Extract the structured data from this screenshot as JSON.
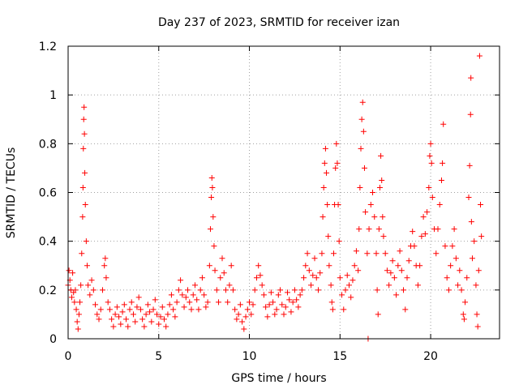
{
  "chart_data": {
    "type": "scatter",
    "title": "Day 237 of 2023, SRMTID for receiver izan",
    "xlabel": "GPS time / hours",
    "ylabel": "SRMTID / TECUs",
    "xlim": [
      0,
      23.8
    ],
    "ylim": [
      0,
      1.2
    ],
    "grid": true,
    "legend": "none",
    "marker": "plus",
    "color": "#ff0000",
    "x_ticks": [
      0,
      5,
      10,
      15,
      20
    ],
    "x_tick_labels": [
      "0",
      "5",
      "10",
      "15",
      "20"
    ],
    "y_ticks": [
      0,
      0.2,
      0.4,
      0.6,
      0.8,
      1.0,
      1.2
    ],
    "y_tick_labels": [
      "0",
      "0.2",
      "0.4",
      "0.6",
      "0.8",
      "1",
      "1.2"
    ],
    "series": [
      {
        "name": "SRMTID",
        "points": [
          [
            0.0,
            0.22
          ],
          [
            0.05,
            0.28
          ],
          [
            0.1,
            0.24
          ],
          [
            0.15,
            0.2
          ],
          [
            0.2,
            0.17
          ],
          [
            0.25,
            0.27
          ],
          [
            0.3,
            0.19
          ],
          [
            0.35,
            0.15
          ],
          [
            0.4,
            0.2
          ],
          [
            0.45,
            0.12
          ],
          [
            0.5,
            0.07
          ],
          [
            0.55,
            0.04
          ],
          [
            0.6,
            0.1
          ],
          [
            0.65,
            0.15
          ],
          [
            0.7,
            0.22
          ],
          [
            0.75,
            0.35
          ],
          [
            0.8,
            0.5
          ],
          [
            0.82,
            0.62
          ],
          [
            0.84,
            0.78
          ],
          [
            0.86,
            0.9
          ],
          [
            0.88,
            0.95
          ],
          [
            0.9,
            0.84
          ],
          [
            0.92,
            0.68
          ],
          [
            0.95,
            0.55
          ],
          [
            1.0,
            0.4
          ],
          [
            1.05,
            0.3
          ],
          [
            1.1,
            0.22
          ],
          [
            1.2,
            0.18
          ],
          [
            1.3,
            0.24
          ],
          [
            1.4,
            0.2
          ],
          [
            1.5,
            0.14
          ],
          [
            1.6,
            0.1
          ],
          [
            1.7,
            0.08
          ],
          [
            1.8,
            0.12
          ],
          [
            1.9,
            0.2
          ],
          [
            2.0,
            0.3
          ],
          [
            2.05,
            0.33
          ],
          [
            2.1,
            0.25
          ],
          [
            2.2,
            0.15
          ],
          [
            2.3,
            0.12
          ],
          [
            2.4,
            0.08
          ],
          [
            2.5,
            0.05
          ],
          [
            2.6,
            0.1
          ],
          [
            2.7,
            0.13
          ],
          [
            2.8,
            0.09
          ],
          [
            2.9,
            0.06
          ],
          [
            3.0,
            0.11
          ],
          [
            3.1,
            0.14
          ],
          [
            3.2,
            0.08
          ],
          [
            3.3,
            0.05
          ],
          [
            3.4,
            0.12
          ],
          [
            3.5,
            0.15
          ],
          [
            3.6,
            0.1
          ],
          [
            3.7,
            0.07
          ],
          [
            3.8,
            0.13
          ],
          [
            3.9,
            0.17
          ],
          [
            4.0,
            0.12
          ],
          [
            4.1,
            0.08
          ],
          [
            4.2,
            0.05
          ],
          [
            4.3,
            0.1
          ],
          [
            4.4,
            0.14
          ],
          [
            4.5,
            0.11
          ],
          [
            4.6,
            0.07
          ],
          [
            4.7,
            0.12
          ],
          [
            4.8,
            0.16
          ],
          [
            4.9,
            0.1
          ],
          [
            5.0,
            0.06
          ],
          [
            5.1,
            0.09
          ],
          [
            5.2,
            0.13
          ],
          [
            5.3,
            0.08
          ],
          [
            5.4,
            0.05
          ],
          [
            5.5,
            0.1
          ],
          [
            5.6,
            0.14
          ],
          [
            5.7,
            0.18
          ],
          [
            5.8,
            0.12
          ],
          [
            5.9,
            0.09
          ],
          [
            6.0,
            0.15
          ],
          [
            6.1,
            0.2
          ],
          [
            6.2,
            0.24
          ],
          [
            6.3,
            0.18
          ],
          [
            6.4,
            0.13
          ],
          [
            6.5,
            0.17
          ],
          [
            6.6,
            0.2
          ],
          [
            6.7,
            0.15
          ],
          [
            6.8,
            0.12
          ],
          [
            6.9,
            0.18
          ],
          [
            7.0,
            0.22
          ],
          [
            7.1,
            0.16
          ],
          [
            7.2,
            0.12
          ],
          [
            7.3,
            0.2
          ],
          [
            7.4,
            0.25
          ],
          [
            7.5,
            0.18
          ],
          [
            7.6,
            0.13
          ],
          [
            7.7,
            0.15
          ],
          [
            7.8,
            0.3
          ],
          [
            7.85,
            0.45
          ],
          [
            7.9,
            0.58
          ],
          [
            7.93,
            0.66
          ],
          [
            7.96,
            0.62
          ],
          [
            8.0,
            0.5
          ],
          [
            8.05,
            0.38
          ],
          [
            8.1,
            0.28
          ],
          [
            8.2,
            0.2
          ],
          [
            8.3,
            0.15
          ],
          [
            8.4,
            0.25
          ],
          [
            8.5,
            0.33
          ],
          [
            8.6,
            0.27
          ],
          [
            8.7,
            0.2
          ],
          [
            8.8,
            0.15
          ],
          [
            8.9,
            0.22
          ],
          [
            9.0,
            0.3
          ],
          [
            9.1,
            0.2
          ],
          [
            9.2,
            0.12
          ],
          [
            9.3,
            0.08
          ],
          [
            9.4,
            0.1
          ],
          [
            9.5,
            0.14
          ],
          [
            9.6,
            0.07
          ],
          [
            9.7,
            0.04
          ],
          [
            9.8,
            0.09
          ],
          [
            9.9,
            0.12
          ],
          [
            10.0,
            0.15
          ],
          [
            10.1,
            0.1
          ],
          [
            10.2,
            0.14
          ],
          [
            10.3,
            0.2
          ],
          [
            10.4,
            0.25
          ],
          [
            10.5,
            0.3
          ],
          [
            10.6,
            0.26
          ],
          [
            10.7,
            0.22
          ],
          [
            10.8,
            0.18
          ],
          [
            10.9,
            0.13
          ],
          [
            11.0,
            0.09
          ],
          [
            11.1,
            0.14
          ],
          [
            11.2,
            0.19
          ],
          [
            11.3,
            0.15
          ],
          [
            11.4,
            0.1
          ],
          [
            11.5,
            0.12
          ],
          [
            11.6,
            0.18
          ],
          [
            11.7,
            0.2
          ],
          [
            11.8,
            0.14
          ],
          [
            11.9,
            0.1
          ],
          [
            12.0,
            0.13
          ],
          [
            12.1,
            0.19
          ],
          [
            12.2,
            0.16
          ],
          [
            12.3,
            0.11
          ],
          [
            12.4,
            0.15
          ],
          [
            12.5,
            0.2
          ],
          [
            12.6,
            0.16
          ],
          [
            12.7,
            0.13
          ],
          [
            12.8,
            0.18
          ],
          [
            12.9,
            0.2
          ],
          [
            13.0,
            0.25
          ],
          [
            13.1,
            0.3
          ],
          [
            13.2,
            0.35
          ],
          [
            13.3,
            0.28
          ],
          [
            13.4,
            0.22
          ],
          [
            13.5,
            0.26
          ],
          [
            13.6,
            0.33
          ],
          [
            13.7,
            0.25
          ],
          [
            13.8,
            0.2
          ],
          [
            13.9,
            0.27
          ],
          [
            14.0,
            0.35
          ],
          [
            14.05,
            0.5
          ],
          [
            14.1,
            0.62
          ],
          [
            14.15,
            0.72
          ],
          [
            14.2,
            0.78
          ],
          [
            14.25,
            0.68
          ],
          [
            14.3,
            0.55
          ],
          [
            14.35,
            0.42
          ],
          [
            14.4,
            0.3
          ],
          [
            14.5,
            0.22
          ],
          [
            14.55,
            0.15
          ],
          [
            14.6,
            0.12
          ],
          [
            14.65,
            0.35
          ],
          [
            14.7,
            0.55
          ],
          [
            14.75,
            0.7
          ],
          [
            14.8,
            0.8
          ],
          [
            14.85,
            0.72
          ],
          [
            14.9,
            0.55
          ],
          [
            14.95,
            0.4
          ],
          [
            15.0,
            0.25
          ],
          [
            15.1,
            0.18
          ],
          [
            15.2,
            0.12
          ],
          [
            15.3,
            0.2
          ],
          [
            15.4,
            0.26
          ],
          [
            15.5,
            0.22
          ],
          [
            15.6,
            0.17
          ],
          [
            15.7,
            0.24
          ],
          [
            15.8,
            0.3
          ],
          [
            15.9,
            0.36
          ],
          [
            16.0,
            0.28
          ],
          [
            16.05,
            0.45
          ],
          [
            16.1,
            0.62
          ],
          [
            16.15,
            0.78
          ],
          [
            16.2,
            0.9
          ],
          [
            16.25,
            0.97
          ],
          [
            16.3,
            0.85
          ],
          [
            16.35,
            0.7
          ],
          [
            16.4,
            0.52
          ],
          [
            16.5,
            0.35
          ],
          [
            16.55,
            0.0
          ],
          [
            16.6,
            0.45
          ],
          [
            16.7,
            0.55
          ],
          [
            16.8,
            0.6
          ],
          [
            16.9,
            0.5
          ],
          [
            17.0,
            0.35
          ],
          [
            17.05,
            0.2
          ],
          [
            17.1,
            0.1
          ],
          [
            17.15,
            0.45
          ],
          [
            17.2,
            0.62
          ],
          [
            17.25,
            0.75
          ],
          [
            17.3,
            0.65
          ],
          [
            17.35,
            0.5
          ],
          [
            17.4,
            0.42
          ],
          [
            17.5,
            0.35
          ],
          [
            17.6,
            0.28
          ],
          [
            17.7,
            0.22
          ],
          [
            17.8,
            0.27
          ],
          [
            17.9,
            0.32
          ],
          [
            18.0,
            0.25
          ],
          [
            18.1,
            0.18
          ],
          [
            18.2,
            0.3
          ],
          [
            18.3,
            0.36
          ],
          [
            18.4,
            0.28
          ],
          [
            18.5,
            0.2
          ],
          [
            18.6,
            0.12
          ],
          [
            18.7,
            0.25
          ],
          [
            18.8,
            0.32
          ],
          [
            18.9,
            0.38
          ],
          [
            19.0,
            0.44
          ],
          [
            19.1,
            0.38
          ],
          [
            19.2,
            0.3
          ],
          [
            19.3,
            0.22
          ],
          [
            19.4,
            0.3
          ],
          [
            19.5,
            0.42
          ],
          [
            19.6,
            0.5
          ],
          [
            19.7,
            0.43
          ],
          [
            19.8,
            0.52
          ],
          [
            19.9,
            0.62
          ],
          [
            19.95,
            0.75
          ],
          [
            20.0,
            0.8
          ],
          [
            20.05,
            0.72
          ],
          [
            20.1,
            0.58
          ],
          [
            20.2,
            0.45
          ],
          [
            20.3,
            0.35
          ],
          [
            20.4,
            0.45
          ],
          [
            20.5,
            0.55
          ],
          [
            20.6,
            0.65
          ],
          [
            20.65,
            0.72
          ],
          [
            20.7,
            0.88
          ],
          [
            20.8,
            0.38
          ],
          [
            20.9,
            0.25
          ],
          [
            21.0,
            0.2
          ],
          [
            21.1,
            0.3
          ],
          [
            21.2,
            0.38
          ],
          [
            21.3,
            0.45
          ],
          [
            21.4,
            0.33
          ],
          [
            21.5,
            0.22
          ],
          [
            21.6,
            0.28
          ],
          [
            21.7,
            0.2
          ],
          [
            21.8,
            0.1
          ],
          [
            21.85,
            0.08
          ],
          [
            21.9,
            0.15
          ],
          [
            22.0,
            0.25
          ],
          [
            22.1,
            0.58
          ],
          [
            22.15,
            0.71
          ],
          [
            22.2,
            0.92
          ],
          [
            22.22,
            1.07
          ],
          [
            22.25,
            0.48
          ],
          [
            22.3,
            0.33
          ],
          [
            22.4,
            0.4
          ],
          [
            22.5,
            0.22
          ],
          [
            22.55,
            0.1
          ],
          [
            22.6,
            0.05
          ],
          [
            22.65,
            0.28
          ],
          [
            22.7,
            1.16
          ],
          [
            22.75,
            0.55
          ],
          [
            22.8,
            0.42
          ]
        ]
      }
    ]
  }
}
